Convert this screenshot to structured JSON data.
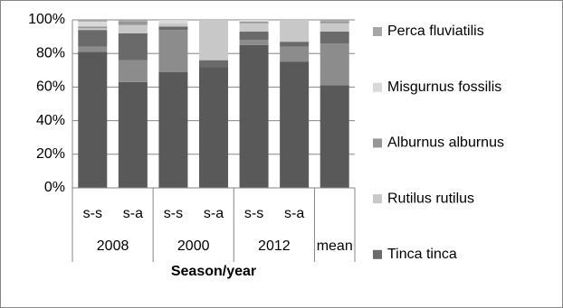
{
  "chart_data": {
    "type": "stacked-bar",
    "categories": [
      "s-s",
      "s-a",
      "s-s",
      "s-a",
      "s-s",
      "s-a",
      null
    ],
    "groups": [
      "2008",
      "2008",
      "2000",
      "2000",
      "2012",
      "2012",
      "mean"
    ],
    "x_label": "Season/year",
    "series": [
      {
        "color": "#595959",
        "values": [
          81,
          63,
          69,
          72,
          85,
          75,
          61
        ]
      },
      {
        "color": "#8c8c8c",
        "values": [
          3,
          13,
          25,
          0,
          3,
          9,
          25
        ]
      },
      {
        "name": "Tinca tinca",
        "color": "#6a6a6a",
        "values": [
          10,
          16,
          2,
          4,
          5,
          3,
          7
        ]
      },
      {
        "name": "Rutilus rutilus",
        "color": "#c8c8c8",
        "values": [
          1,
          5,
          2,
          24,
          5,
          13,
          5
        ]
      },
      {
        "name": "Alburnus alburnus",
        "color": "#969696",
        "values": [
          1,
          2,
          0,
          0,
          1,
          0,
          1
        ]
      },
      {
        "name": "Misgurnus fossilis",
        "color": "#d9d9d9",
        "values": [
          3,
          0,
          2,
          0,
          1,
          0,
          0
        ]
      },
      {
        "name": "Perca fluviatilis",
        "color": "#a6a6a6",
        "values": [
          1,
          1,
          0,
          0,
          0,
          0,
          1
        ]
      }
    ],
    "ylim": [
      0,
      100
    ],
    "yticks": [
      {
        "value": 0,
        "label": "0%"
      },
      {
        "value": 20,
        "label": "20%"
      },
      {
        "value": 40,
        "label": "40%"
      },
      {
        "value": 60,
        "label": "60%"
      },
      {
        "value": 80,
        "label": "80%"
      },
      {
        "value": 100,
        "label": "100%"
      }
    ],
    "grid": true
  }
}
